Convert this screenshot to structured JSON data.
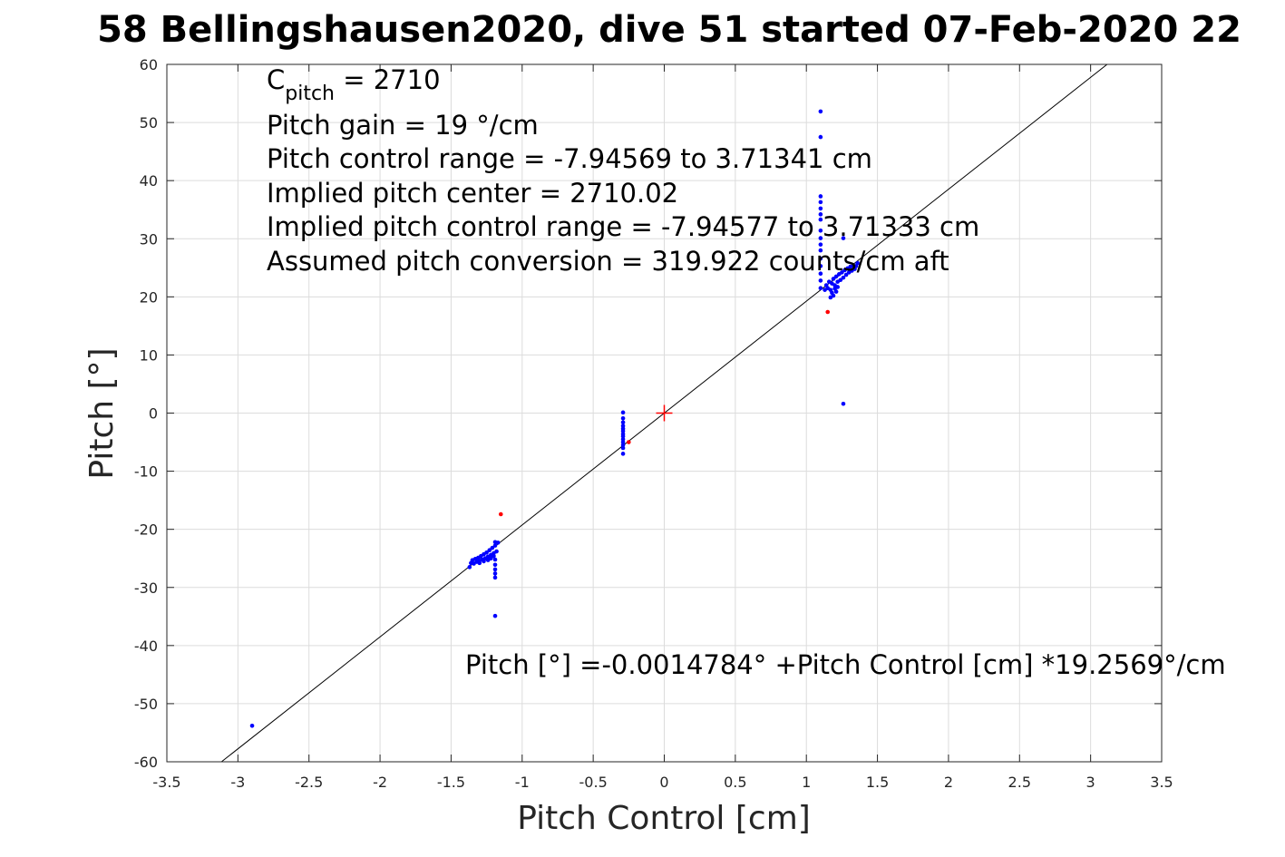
{
  "chart_data": {
    "type": "scatter",
    "title": "58 Bellingshausen2020, dive 51 started 07-Feb-2020 22",
    "xlabel": "Pitch Control [cm]",
    "ylabel": "Pitch [°]",
    "xlim": [
      -3.5,
      3.5
    ],
    "ylim": [
      -60,
      60
    ],
    "grid": true,
    "xticks": [
      "-3.5",
      "-3",
      "-2.5",
      "-2",
      "-1.5",
      "-1",
      "-0.5",
      "0",
      "0.5",
      "1",
      "1.5",
      "2",
      "2.5",
      "3",
      "3.5"
    ],
    "yticks": [
      "60",
      "50",
      "40",
      "30",
      "20",
      "10",
      "0",
      "-10",
      "-20",
      "-30",
      "-40",
      "-50",
      "-60"
    ],
    "annotations": {
      "c_pitch_main": "C",
      "c_pitch_sub": "pitch",
      "c_pitch_value": " = 2710",
      "pitch_gain": "Pitch gain = 19 °/cm",
      "control_range": "Pitch control range = -7.94569 to 3.71341 cm",
      "implied_center": "Implied pitch center = 2710.02",
      "implied_range": "Implied pitch control range = -7.94577 to 3.71333 cm",
      "conversion": "Assumed pitch conversion = 319.922 counts/cm aft",
      "fit_equation": "Pitch [°] =-0.0014784° +Pitch Control [cm] *19.2569°/cm"
    },
    "fit_line": {
      "intercept": -0.0014784,
      "slope": 19.2569
    },
    "center_marker": {
      "x": 0,
      "y": 0,
      "color": "#ff0000"
    },
    "series": [
      {
        "color": "#0000ff",
        "points": [
          [
            -2.9,
            -53.8
          ],
          [
            -1.19,
            -34.9
          ],
          [
            -1.37,
            -26.5
          ],
          [
            -1.36,
            -25.8
          ],
          [
            -1.35,
            -25.3
          ],
          [
            -1.34,
            -25.9
          ],
          [
            -1.33,
            -25.1
          ],
          [
            -1.32,
            -25.6
          ],
          [
            -1.31,
            -24.9
          ],
          [
            -1.3,
            -25.4
          ],
          [
            -1.29,
            -24.6
          ],
          [
            -1.28,
            -25.2
          ],
          [
            -1.27,
            -24.3
          ],
          [
            -1.26,
            -25.0
          ],
          [
            -1.25,
            -24.0
          ],
          [
            -1.24,
            -24.7
          ],
          [
            -1.23,
            -23.6
          ],
          [
            -1.22,
            -24.4
          ],
          [
            -1.21,
            -23.2
          ],
          [
            -1.2,
            -24.1
          ],
          [
            -1.19,
            -22.8
          ],
          [
            -1.18,
            -23.8
          ],
          [
            -1.17,
            -22.3
          ],
          [
            -1.3,
            -25.8
          ],
          [
            -1.27,
            -25.5
          ],
          [
            -1.24,
            -25.3
          ],
          [
            -1.22,
            -25.0
          ],
          [
            -1.2,
            -24.6
          ],
          [
            -1.19,
            -25.2
          ],
          [
            -1.19,
            -26.1
          ],
          [
            -1.19,
            -26.9
          ],
          [
            -1.19,
            -27.6
          ],
          [
            -1.19,
            -28.3
          ],
          [
            -1.19,
            -22.2
          ],
          [
            -0.29,
            0.1
          ],
          [
            -0.29,
            -0.9
          ],
          [
            -0.29,
            -1.6
          ],
          [
            -0.29,
            -2.2
          ],
          [
            -0.29,
            -2.7
          ],
          [
            -0.29,
            -3.1
          ],
          [
            -0.29,
            -3.6
          ],
          [
            -0.29,
            -4.0
          ],
          [
            -0.29,
            -4.5
          ],
          [
            -0.29,
            -5.0
          ],
          [
            -0.29,
            -5.5
          ],
          [
            -0.29,
            -6.0
          ],
          [
            -0.29,
            -7.0
          ],
          [
            1.1,
            51.9
          ],
          [
            1.1,
            47.5
          ],
          [
            1.1,
            37.3
          ],
          [
            1.1,
            36.3
          ],
          [
            1.1,
            35.2
          ],
          [
            1.1,
            34.2
          ],
          [
            1.1,
            33.3
          ],
          [
            1.1,
            31.4
          ],
          [
            1.1,
            30.1
          ],
          [
            1.1,
            29.0
          ],
          [
            1.1,
            28.0
          ],
          [
            1.1,
            26.6
          ],
          [
            1.1,
            25.3
          ],
          [
            1.1,
            24.0
          ],
          [
            1.1,
            22.8
          ],
          [
            1.1,
            21.5
          ],
          [
            1.13,
            21.2
          ],
          [
            1.14,
            22.0
          ],
          [
            1.15,
            21.5
          ],
          [
            1.16,
            22.6
          ],
          [
            1.17,
            21.2
          ],
          [
            1.18,
            22.3
          ],
          [
            1.19,
            23.1
          ],
          [
            1.2,
            22.0
          ],
          [
            1.21,
            23.5
          ],
          [
            1.22,
            22.6
          ],
          [
            1.23,
            23.9
          ],
          [
            1.24,
            22.9
          ],
          [
            1.25,
            24.2
          ],
          [
            1.26,
            23.3
          ],
          [
            1.27,
            24.6
          ],
          [
            1.28,
            23.8
          ],
          [
            1.29,
            24.9
          ],
          [
            1.3,
            24.2
          ],
          [
            1.31,
            25.2
          ],
          [
            1.32,
            24.5
          ],
          [
            1.33,
            25.4
          ],
          [
            1.34,
            24.8
          ],
          [
            1.35,
            25.3
          ],
          [
            1.36,
            25.8
          ],
          [
            1.17,
            19.9
          ],
          [
            1.18,
            20.7
          ],
          [
            1.19,
            20.2
          ],
          [
            1.2,
            21.4
          ],
          [
            1.21,
            20.9
          ],
          [
            1.22,
            21.7
          ],
          [
            1.26,
            30.1
          ],
          [
            1.26,
            1.6
          ]
        ]
      },
      {
        "color": "#ff0000",
        "points": [
          [
            -1.15,
            -17.4
          ],
          [
            1.15,
            17.4
          ],
          [
            -0.25,
            -5.0
          ]
        ]
      }
    ]
  }
}
